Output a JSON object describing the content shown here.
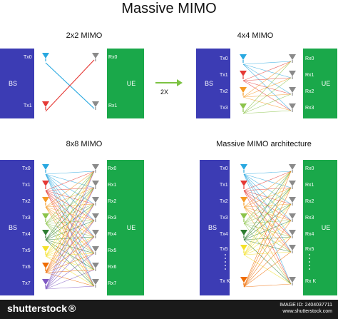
{
  "title": "Massive MIMO",
  "panels": [
    {
      "id": "p2",
      "title": "2x2 MIMO",
      "bs": "BS",
      "ue": "UE",
      "tx": [
        "Tx0",
        "Tx1"
      ],
      "rx": [
        "Rx0",
        "Rx1"
      ]
    },
    {
      "id": "p4",
      "title": "4x4 MIMO",
      "bs": "BS",
      "ue": "UE",
      "tx": [
        "Tx0",
        "Tx1",
        "Tx2",
        "Tx3"
      ],
      "rx": [
        "Rx0",
        "Rx1",
        "Rx2",
        "Rx3"
      ]
    },
    {
      "id": "p8",
      "title": "8x8 MIMO",
      "bs": "BS",
      "ue": "UE",
      "tx": [
        "Tx0",
        "Tx1",
        "Tx2",
        "Tx3",
        "Tx4",
        "Tx5",
        "Tx6",
        "Tx7"
      ],
      "rx": [
        "Rx0",
        "Rx1",
        "Rx2",
        "Rx3",
        "Rx4",
        "Rx5",
        "Rx6",
        "Rx7"
      ]
    },
    {
      "id": "pm",
      "title": "Massive MIMO architecture",
      "bs": "BS",
      "ue": "UE",
      "tx": [
        "Tx0",
        "Tx1",
        "Tx2",
        "Tx3",
        "Tx4",
        "Tx5",
        "Tx K"
      ],
      "rx": [
        "Rx0",
        "Rx1",
        "Rx2",
        "Rx3",
        "Rx4",
        "Rx5",
        "Rx K"
      ]
    }
  ],
  "arrow_label": "2X",
  "footer": {
    "brand": "shutterstock",
    "brand_icon": "®",
    "image_id_label": "IMAGE ID: 2404037711",
    "site": "www.shutterstock.com"
  },
  "colors": {
    "bs": "#3c3cb4",
    "ue": "#1aa84a",
    "antennas": [
      "#29a8e0",
      "#e53935",
      "#f59a23",
      "#8bc34a",
      "#2e7d32",
      "#f4e12a",
      "#ef6c00",
      "#7e57c2"
    ],
    "rx_antenna": "#8a8a8a",
    "arrow": "#7cc242"
  }
}
